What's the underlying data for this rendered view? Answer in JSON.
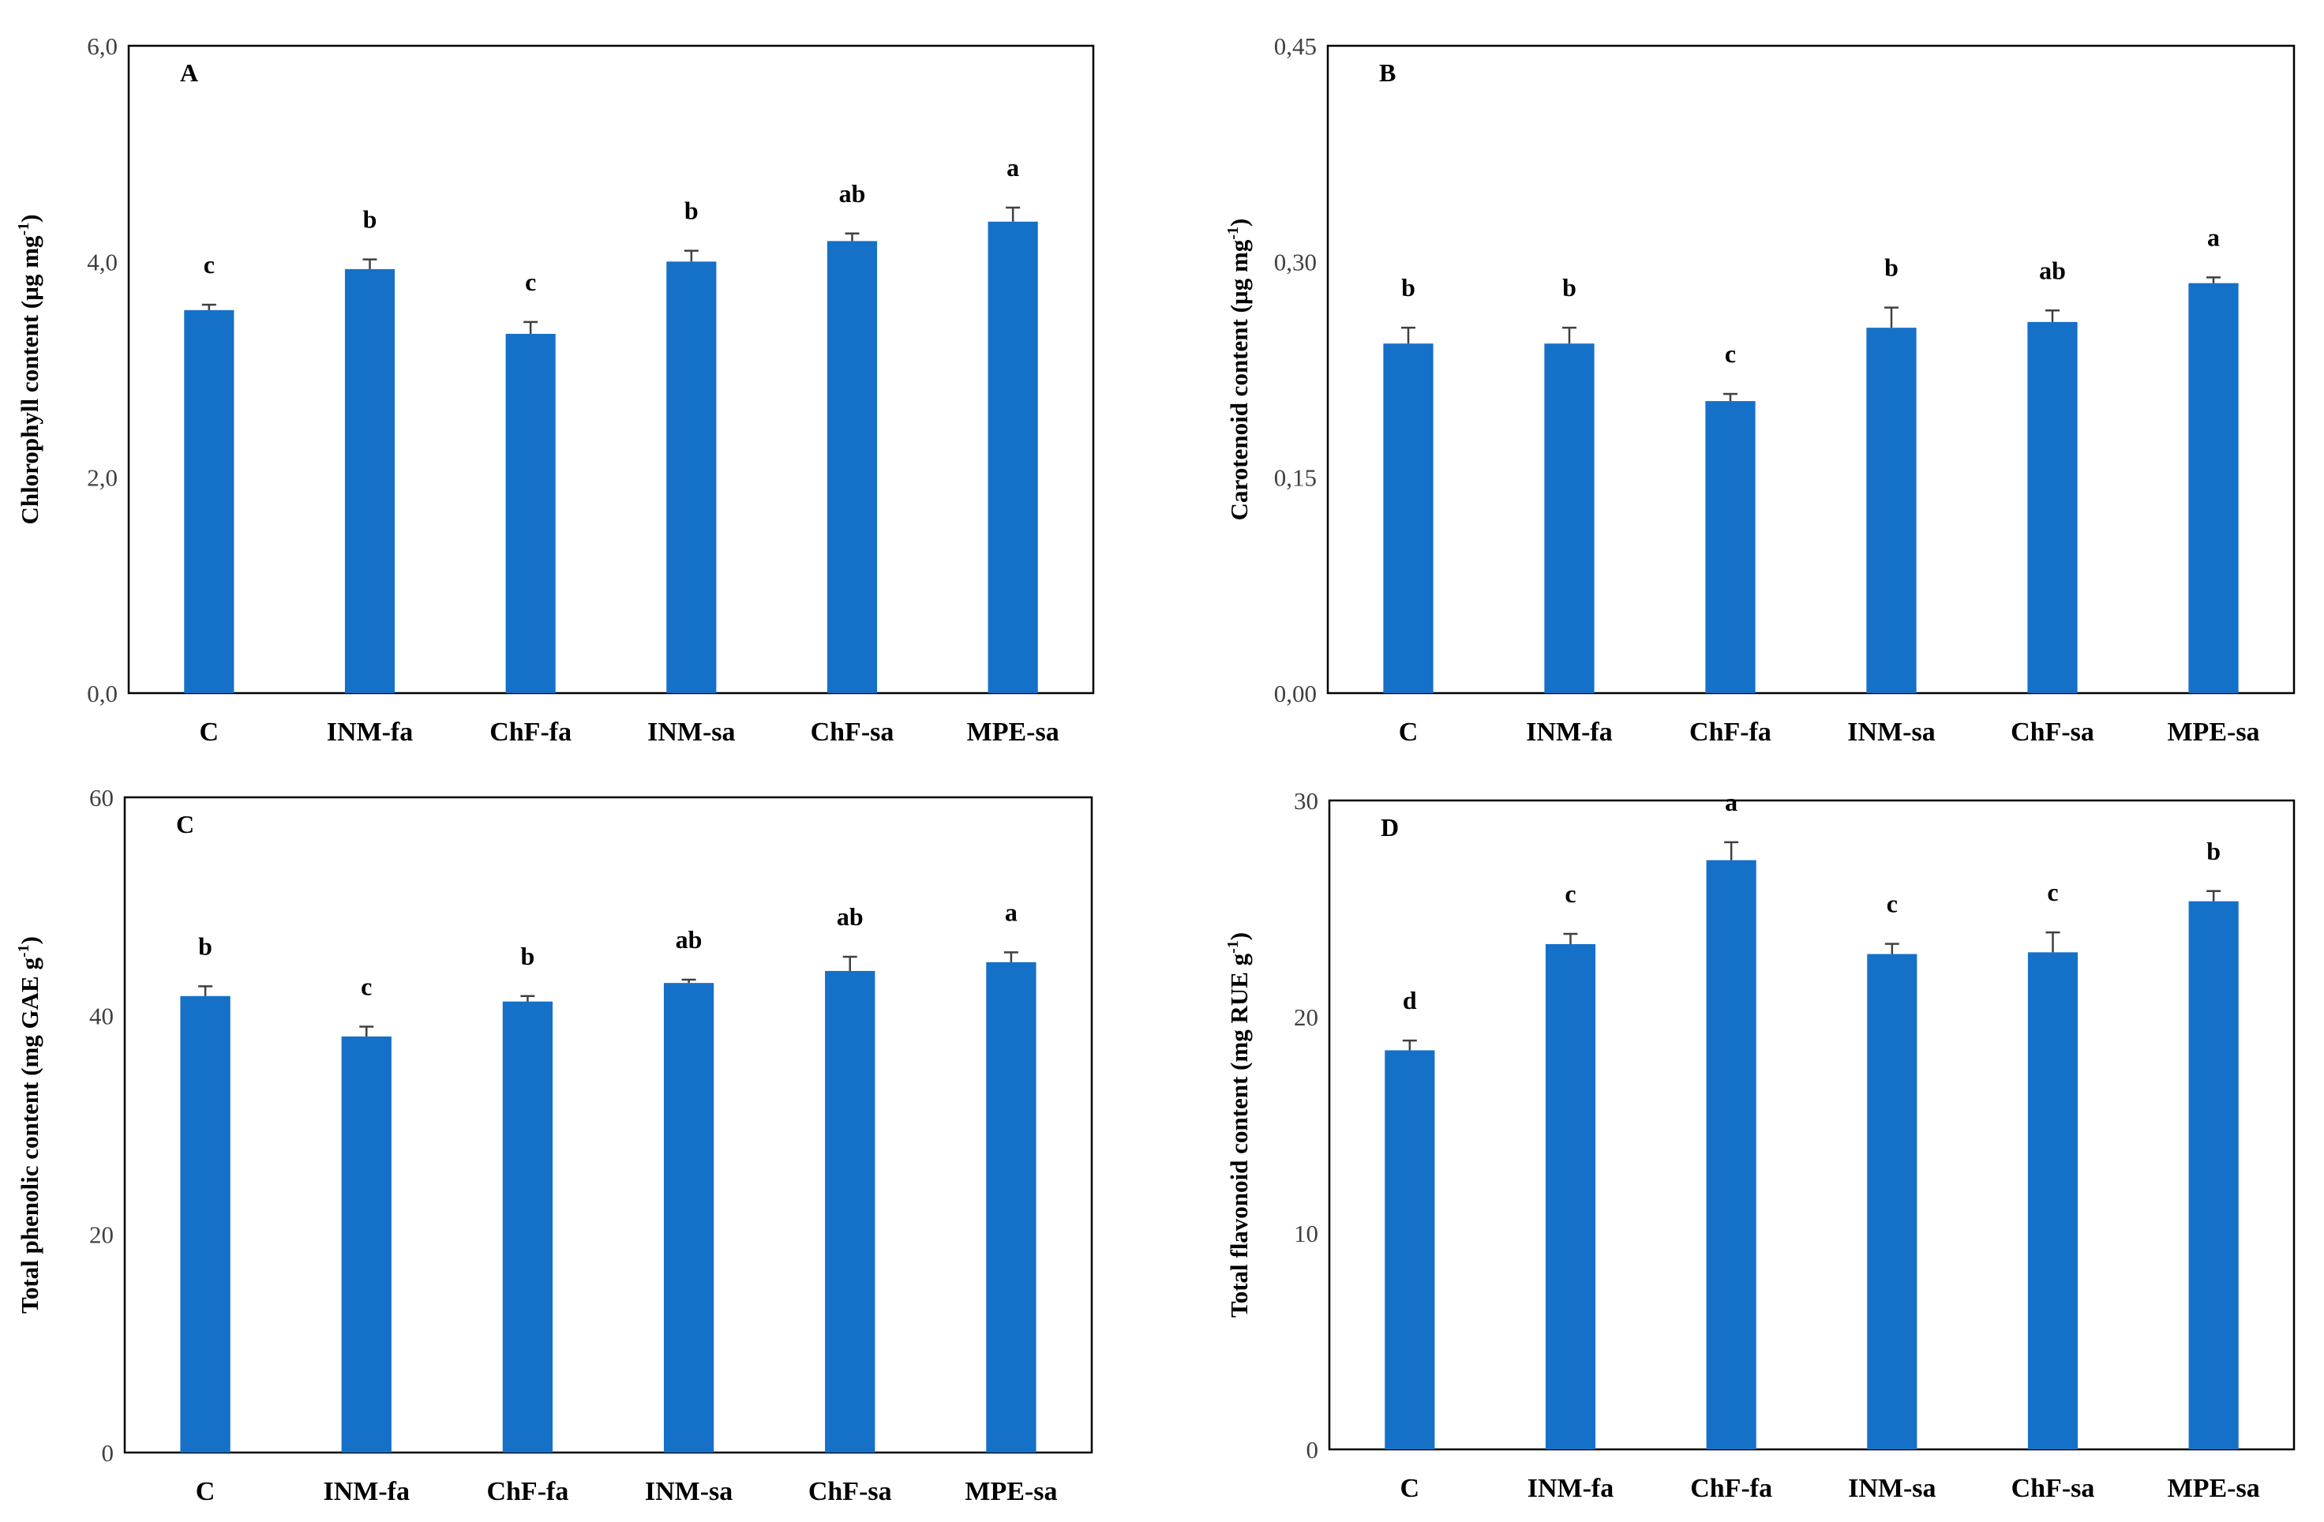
{
  "chart_data": [
    {
      "type": "bar",
      "panel_label": "A",
      "ylabel": "Chlorophyll  content  (µg mg",
      "ylabel_sup": "-1",
      "ylabel_end": ")",
      "categories": [
        "C",
        "INM-fa",
        "ChF-fa",
        "INM-sa",
        "ChF-sa",
        "MPE-sa"
      ],
      "values": [
        3.55,
        3.93,
        3.33,
        4.0,
        4.19,
        4.37
      ],
      "errors": [
        0.05,
        0.09,
        0.11,
        0.1,
        0.07,
        0.13
      ],
      "letters": [
        "c",
        "b",
        "c",
        "b",
        "ab",
        "a"
      ],
      "ylim": [
        0,
        6
      ],
      "yticks": [
        0,
        2,
        4,
        6
      ],
      "ytick_labels": [
        "0,0",
        "2,0",
        "4,0",
        "6,0"
      ],
      "grid": false
    },
    {
      "type": "bar",
      "panel_label": "B",
      "ylabel": "Carotenoid  content  (µg mg",
      "ylabel_sup": "-1",
      "ylabel_end": ")",
      "categories": [
        "C",
        "INM-fa",
        "ChF-fa",
        "INM-sa",
        "ChF-sa",
        "MPE-sa"
      ],
      "values": [
        0.243,
        0.243,
        0.203,
        0.254,
        0.258,
        0.285
      ],
      "errors": [
        0.011,
        0.011,
        0.005,
        0.014,
        0.008,
        0.004
      ],
      "letters": [
        "b",
        "b",
        "c",
        "b",
        "ab",
        "a"
      ],
      "ylim": [
        0,
        0.45
      ],
      "yticks": [
        0,
        0.15,
        0.3,
        0.45
      ],
      "ytick_labels": [
        "0,00",
        "0,15",
        "0,30",
        "0,45"
      ],
      "grid": false
    },
    {
      "type": "bar",
      "panel_label": "C",
      "ylabel": "Total phenolic  content (mg GAE g",
      "ylabel_sup": "-1",
      "ylabel_end": ")",
      "categories": [
        "C",
        "INM-fa",
        "ChF-fa",
        "INM-sa",
        "ChF-sa",
        "MPE-sa"
      ],
      "values": [
        41.8,
        38.1,
        41.3,
        43.0,
        44.1,
        44.9
      ],
      "errors": [
        0.9,
        0.9,
        0.5,
        0.3,
        1.3,
        0.9
      ],
      "letters": [
        "b",
        "c",
        "b",
        "ab",
        "ab",
        "a"
      ],
      "ylim": [
        0,
        60
      ],
      "yticks": [
        0,
        20,
        40,
        60
      ],
      "ytick_labels": [
        "0",
        "20",
        "40",
        "60"
      ],
      "grid": false
    },
    {
      "type": "bar",
      "panel_label": "D",
      "ylabel": "Total flavonoid content (mg RUE g",
      "ylabel_sup": "-1",
      "ylabel_end": ")",
      "categories": [
        "C",
        "INM-fa",
        "ChF-fa",
        "INM-sa",
        "ChF-sa",
        "MPE-sa"
      ],
      "values": [
        18.45,
        23.36,
        27.24,
        22.9,
        22.98,
        25.34
      ],
      "errors": [
        0.45,
        0.47,
        0.83,
        0.47,
        0.92,
        0.47
      ],
      "letters": [
        "d",
        "c",
        "a",
        "c",
        "c",
        "b"
      ],
      "ylim": [
        0,
        30
      ],
      "yticks": [
        0,
        10,
        20,
        30
      ],
      "ytick_labels": [
        "0",
        "10",
        "20",
        "30"
      ],
      "grid": false
    }
  ],
  "colors": {
    "bar": "#1570C8",
    "error_bar": "#404040",
    "frame": "#000000"
  }
}
